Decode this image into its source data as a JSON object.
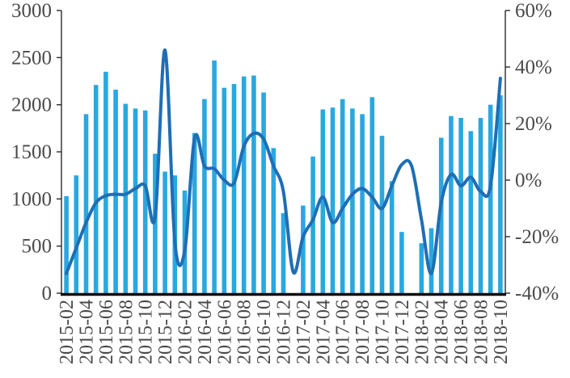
{
  "chart_data": {
    "type": "bar",
    "subtype": "bar-with-line-overlay",
    "title": "",
    "xlabel": "",
    "ylabel_left": "",
    "ylabel_right": "",
    "grid": false,
    "legend": false,
    "categories": [
      "2015-02",
      "2015-03",
      "2015-04",
      "2015-05",
      "2015-06",
      "2015-07",
      "2015-08",
      "2015-09",
      "2015-10",
      "2015-11",
      "2015-12",
      "2016-01",
      "2016-02",
      "2016-03",
      "2016-04",
      "2016-05",
      "2016-06",
      "2016-07",
      "2016-08",
      "2016-09",
      "2016-10",
      "2016-11",
      "2016-12",
      "2017-01",
      "2017-02",
      "2017-03",
      "2017-04",
      "2017-05",
      "2017-06",
      "2017-07",
      "2017-08",
      "2017-09",
      "2017-10",
      "2017-11",
      "2017-12",
      "2018-01",
      "2018-02",
      "2018-03",
      "2018-04",
      "2018-05",
      "2018-06",
      "2018-07",
      "2018-08",
      "2018-09",
      "2018-10"
    ],
    "x_tick_labels": [
      "2015-02",
      "2015-04",
      "2015-06",
      "2015-08",
      "2015-10",
      "2015-12",
      "2016-02",
      "2016-04",
      "2016-06",
      "2016-08",
      "2016-10",
      "2016-12",
      "2017-02",
      "2017-04",
      "2017-06",
      "2017-08",
      "2017-10",
      "2017-12",
      "2018-02",
      "2018-04",
      "2018-06",
      "2018-08",
      "2018-10"
    ],
    "series": [
      {
        "name": "monthly-volume-bars",
        "type": "bar",
        "axis": "left",
        "color": "#29A8E0",
        "values": [
          1030,
          1250,
          1900,
          2210,
          2350,
          2160,
          2010,
          1960,
          1940,
          1480,
          1290,
          1250,
          1090,
          1700,
          2060,
          2470,
          2180,
          2220,
          2300,
          2310,
          2130,
          1540,
          850,
          0,
          930,
          1450,
          1950,
          1970,
          2060,
          1960,
          1900,
          2080,
          1670,
          1190,
          650,
          0,
          530,
          690,
          1650,
          1880,
          1860,
          1720,
          1860,
          2000,
          2100
        ]
      },
      {
        "name": "growth-rate-line",
        "type": "line",
        "axis": "right",
        "smooth": true,
        "color": "#1E6EB5",
        "values_pct": [
          -33,
          -24,
          -15,
          -8,
          -5.5,
          -5,
          -5,
          -3,
          -2,
          -13,
          46,
          -22,
          -25,
          15,
          5,
          4,
          0,
          -1,
          12,
          16.5,
          14.5,
          5,
          -4,
          -32.5,
          -20,
          -14,
          -6,
          -15,
          -10,
          -5,
          -3,
          -6,
          -10,
          -2,
          5.5,
          5,
          -14,
          -33,
          -8,
          2,
          -2,
          1,
          -4,
          -2,
          36
        ]
      }
    ],
    "left_axis": {
      "min": 0,
      "max": 3000,
      "step": 500,
      "tick_labels": [
        "0",
        "500",
        "1000",
        "1500",
        "2000",
        "2500",
        "3000"
      ]
    },
    "right_axis": {
      "min": -40,
      "max": 60,
      "step": 20,
      "tick_labels": [
        "-40%",
        "-20%",
        "0%",
        "20%",
        "40%",
        "60%"
      ]
    }
  },
  "colors": {
    "bar": "#29A8E0",
    "line": "#1E6EB5",
    "axis_line": "#2b2b2b",
    "baseline": "#0d0d0d",
    "label_text": "#4a4a4a",
    "background": "#ffffff"
  }
}
